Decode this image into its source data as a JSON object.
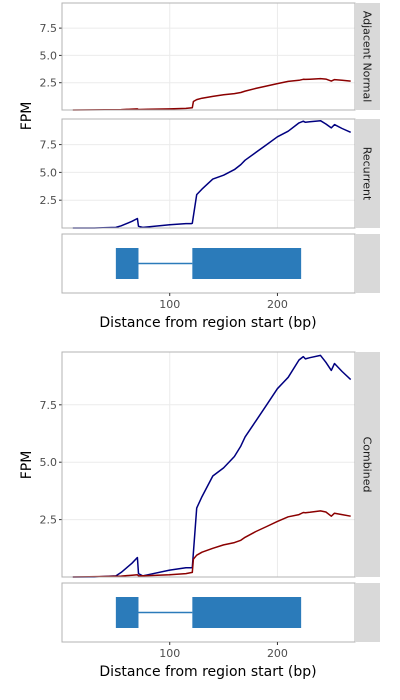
{
  "chart_data": [
    {
      "type": "line",
      "ylabel": "FPM",
      "xlabel": "Distance from region start (bp)",
      "xlim": [
        0,
        272
      ],
      "x_ticks": [
        100,
        200
      ],
      "y_ticks": [
        2.5,
        5.0,
        7.5
      ],
      "y_tick_labels": [
        "2.5",
        "5.0",
        "7.5"
      ],
      "x_tick_labels": [
        "100",
        "200"
      ],
      "panels": [
        {
          "strip": "Adjacent Normal",
          "ylim": [
            0,
            9.8
          ],
          "series": [
            {
              "color": "#8b0000",
              "x": [
                10,
                40,
                55,
                65,
                70,
                71,
                80,
                100,
                115,
                121,
                122,
                125,
                130,
                140,
                150,
                160,
                166,
                170,
                180,
                190,
                200,
                210,
                220,
                224,
                226,
                230,
                240,
                245,
                250,
                253,
                260,
                268
              ],
              "y": [
                0.0,
                0.02,
                0.04,
                0.08,
                0.1,
                0.05,
                0.06,
                0.1,
                0.15,
                0.2,
                0.78,
                0.95,
                1.08,
                1.25,
                1.4,
                1.5,
                1.6,
                1.73,
                1.98,
                2.2,
                2.42,
                2.62,
                2.72,
                2.81,
                2.8,
                2.82,
                2.88,
                2.83,
                2.65,
                2.78,
                2.72,
                2.65
              ]
            }
          ]
        },
        {
          "strip": "Recurrent",
          "ylim": [
            0,
            9.8
          ],
          "series": [
            {
              "color": "#000080",
              "x": [
                10,
                30,
                50,
                55,
                60,
                65,
                70,
                71,
                75,
                80,
                100,
                115,
                120,
                121,
                125,
                130,
                140,
                150,
                160,
                166,
                170,
                180,
                190,
                200,
                210,
                220,
                224,
                226,
                230,
                240,
                245,
                250,
                253,
                260,
                268
              ],
              "y": [
                0.0,
                0.0,
                0.05,
                0.2,
                0.4,
                0.6,
                0.85,
                0.15,
                0.05,
                0.1,
                0.3,
                0.4,
                0.4,
                0.42,
                3.0,
                3.5,
                4.4,
                4.75,
                5.25,
                5.7,
                6.1,
                6.8,
                7.5,
                8.2,
                8.7,
                9.45,
                9.6,
                9.5,
                9.55,
                9.65,
                9.35,
                9.0,
                9.3,
                8.95,
                8.6
              ]
            }
          ]
        }
      ],
      "gene_model": {
        "strand_line": [
          50,
          222
        ],
        "intron": [
          71,
          121
        ],
        "exons": [
          [
            50,
            71
          ],
          [
            121,
            222
          ]
        ],
        "exon_color": "#2b7bba"
      }
    },
    {
      "type": "line",
      "ylabel": "FPM",
      "xlabel": "Distance from region start (bp)",
      "xlim": [
        0,
        272
      ],
      "x_ticks": [
        100,
        200
      ],
      "y_ticks": [
        2.5,
        5.0,
        7.5
      ],
      "y_tick_labels": [
        "2.5",
        "5.0",
        "7.5"
      ],
      "x_tick_labels": [
        "100",
        "200"
      ],
      "panels": [
        {
          "strip": "Combined",
          "ylim": [
            0,
            9.8
          ],
          "series": [
            {
              "color": "#000080",
              "x": [
                10,
                30,
                50,
                55,
                60,
                65,
                70,
                71,
                75,
                80,
                100,
                115,
                120,
                121,
                125,
                130,
                140,
                150,
                160,
                166,
                170,
                180,
                190,
                200,
                210,
                220,
                224,
                226,
                230,
                240,
                245,
                250,
                253,
                260,
                268
              ],
              "y": [
                0.0,
                0.0,
                0.05,
                0.2,
                0.4,
                0.6,
                0.85,
                0.15,
                0.05,
                0.1,
                0.3,
                0.4,
                0.4,
                0.42,
                3.0,
                3.5,
                4.4,
                4.75,
                5.25,
                5.7,
                6.1,
                6.8,
                7.5,
                8.2,
                8.7,
                9.45,
                9.6,
                9.5,
                9.55,
                9.65,
                9.35,
                9.0,
                9.3,
                8.95,
                8.6
              ]
            },
            {
              "color": "#8b0000",
              "x": [
                10,
                40,
                55,
                65,
                70,
                71,
                80,
                100,
                115,
                121,
                122,
                125,
                130,
                140,
                150,
                160,
                166,
                170,
                180,
                190,
                200,
                210,
                220,
                224,
                226,
                230,
                240,
                245,
                250,
                253,
                260,
                268
              ],
              "y": [
                0.0,
                0.02,
                0.04,
                0.08,
                0.1,
                0.05,
                0.06,
                0.1,
                0.15,
                0.2,
                0.78,
                0.95,
                1.08,
                1.25,
                1.4,
                1.5,
                1.6,
                1.73,
                1.98,
                2.2,
                2.42,
                2.62,
                2.72,
                2.81,
                2.8,
                2.82,
                2.88,
                2.83,
                2.65,
                2.78,
                2.72,
                2.65
              ]
            }
          ]
        }
      ],
      "gene_model": {
        "strand_line": [
          50,
          222
        ],
        "intron": [
          71,
          121
        ],
        "exons": [
          [
            50,
            71
          ],
          [
            121,
            222
          ]
        ],
        "exon_color": "#2b7bba"
      }
    }
  ]
}
